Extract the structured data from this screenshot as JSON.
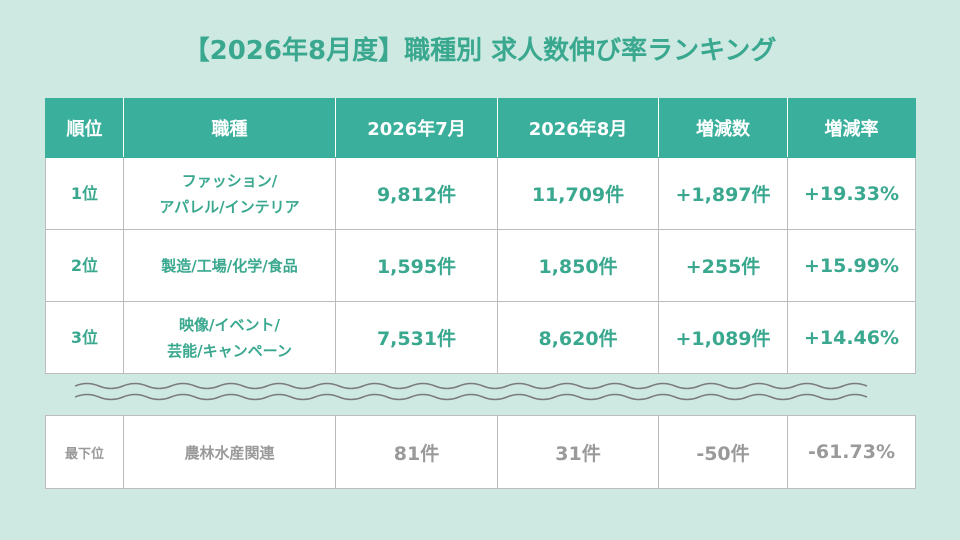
{
  "title": "【2026年8月度】職種別 求人数伸び率ランキング",
  "table": {
    "header": [
      "順位",
      "職種",
      "2026年7月",
      "2026年8月",
      "増減数",
      "増減率"
    ],
    "rows": [
      [
        [
          "1位"
        ],
        [
          "ファッション/",
          "アパレル/インテリア"
        ],
        [
          "9,812件"
        ],
        [
          "11,709件"
        ],
        [
          "+1,897件"
        ],
        [
          "+19.33%"
        ]
      ],
      [
        [
          "2位"
        ],
        [
          "製造/工場/化学/食品"
        ],
        [
          "1,595件"
        ],
        [
          "1,850件"
        ],
        [
          "+255件"
        ],
        [
          "+15.99%"
        ]
      ],
      [
        [
          "3位"
        ],
        [
          "映像/イベント/",
          "芸能/キャンペーン"
        ],
        [
          "7,531件"
        ],
        [
          "8,620件"
        ],
        [
          "+1,089件"
        ],
        [
          "+14.46%"
        ]
      ]
    ]
  },
  "bottom_table": {
    "rows": [
      [
        [
          "最下位"
        ],
        [
          "農林水産関連"
        ],
        [
          "81件"
        ],
        [
          "31件"
        ],
        [
          "-50件"
        ],
        [
          "-61.73%"
        ]
      ]
    ]
  }
}
